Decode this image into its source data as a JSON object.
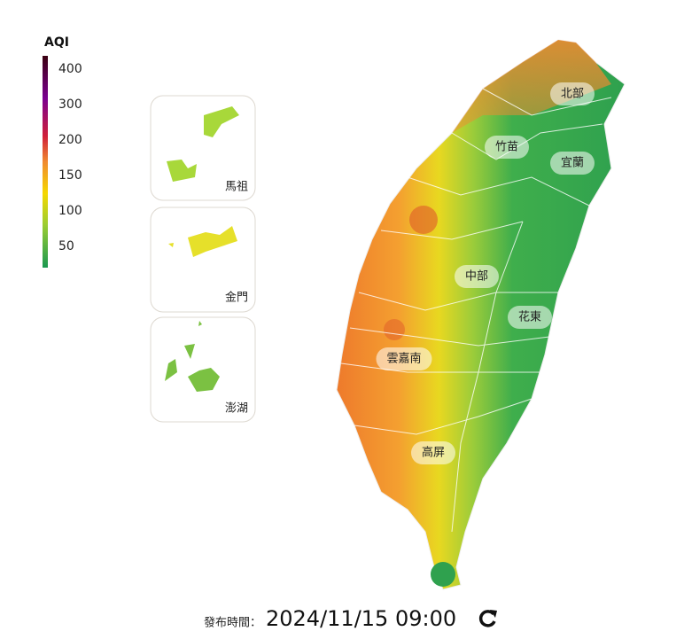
{
  "legend": {
    "title": "AQI",
    "ticks": [
      400,
      300,
      200,
      150,
      100,
      50
    ]
  },
  "islands": [
    {
      "label": "馬祖"
    },
    {
      "label": "金門"
    },
    {
      "label": "澎湖"
    }
  ],
  "regions": [
    {
      "label": "北部"
    },
    {
      "label": "竹苗"
    },
    {
      "label": "宜蘭"
    },
    {
      "label": "中部"
    },
    {
      "label": "花東"
    },
    {
      "label": "雲嘉南"
    },
    {
      "label": "高屏"
    }
  ],
  "footer": {
    "label": "發布時間：",
    "time": "2024/11/15 09:00"
  }
}
